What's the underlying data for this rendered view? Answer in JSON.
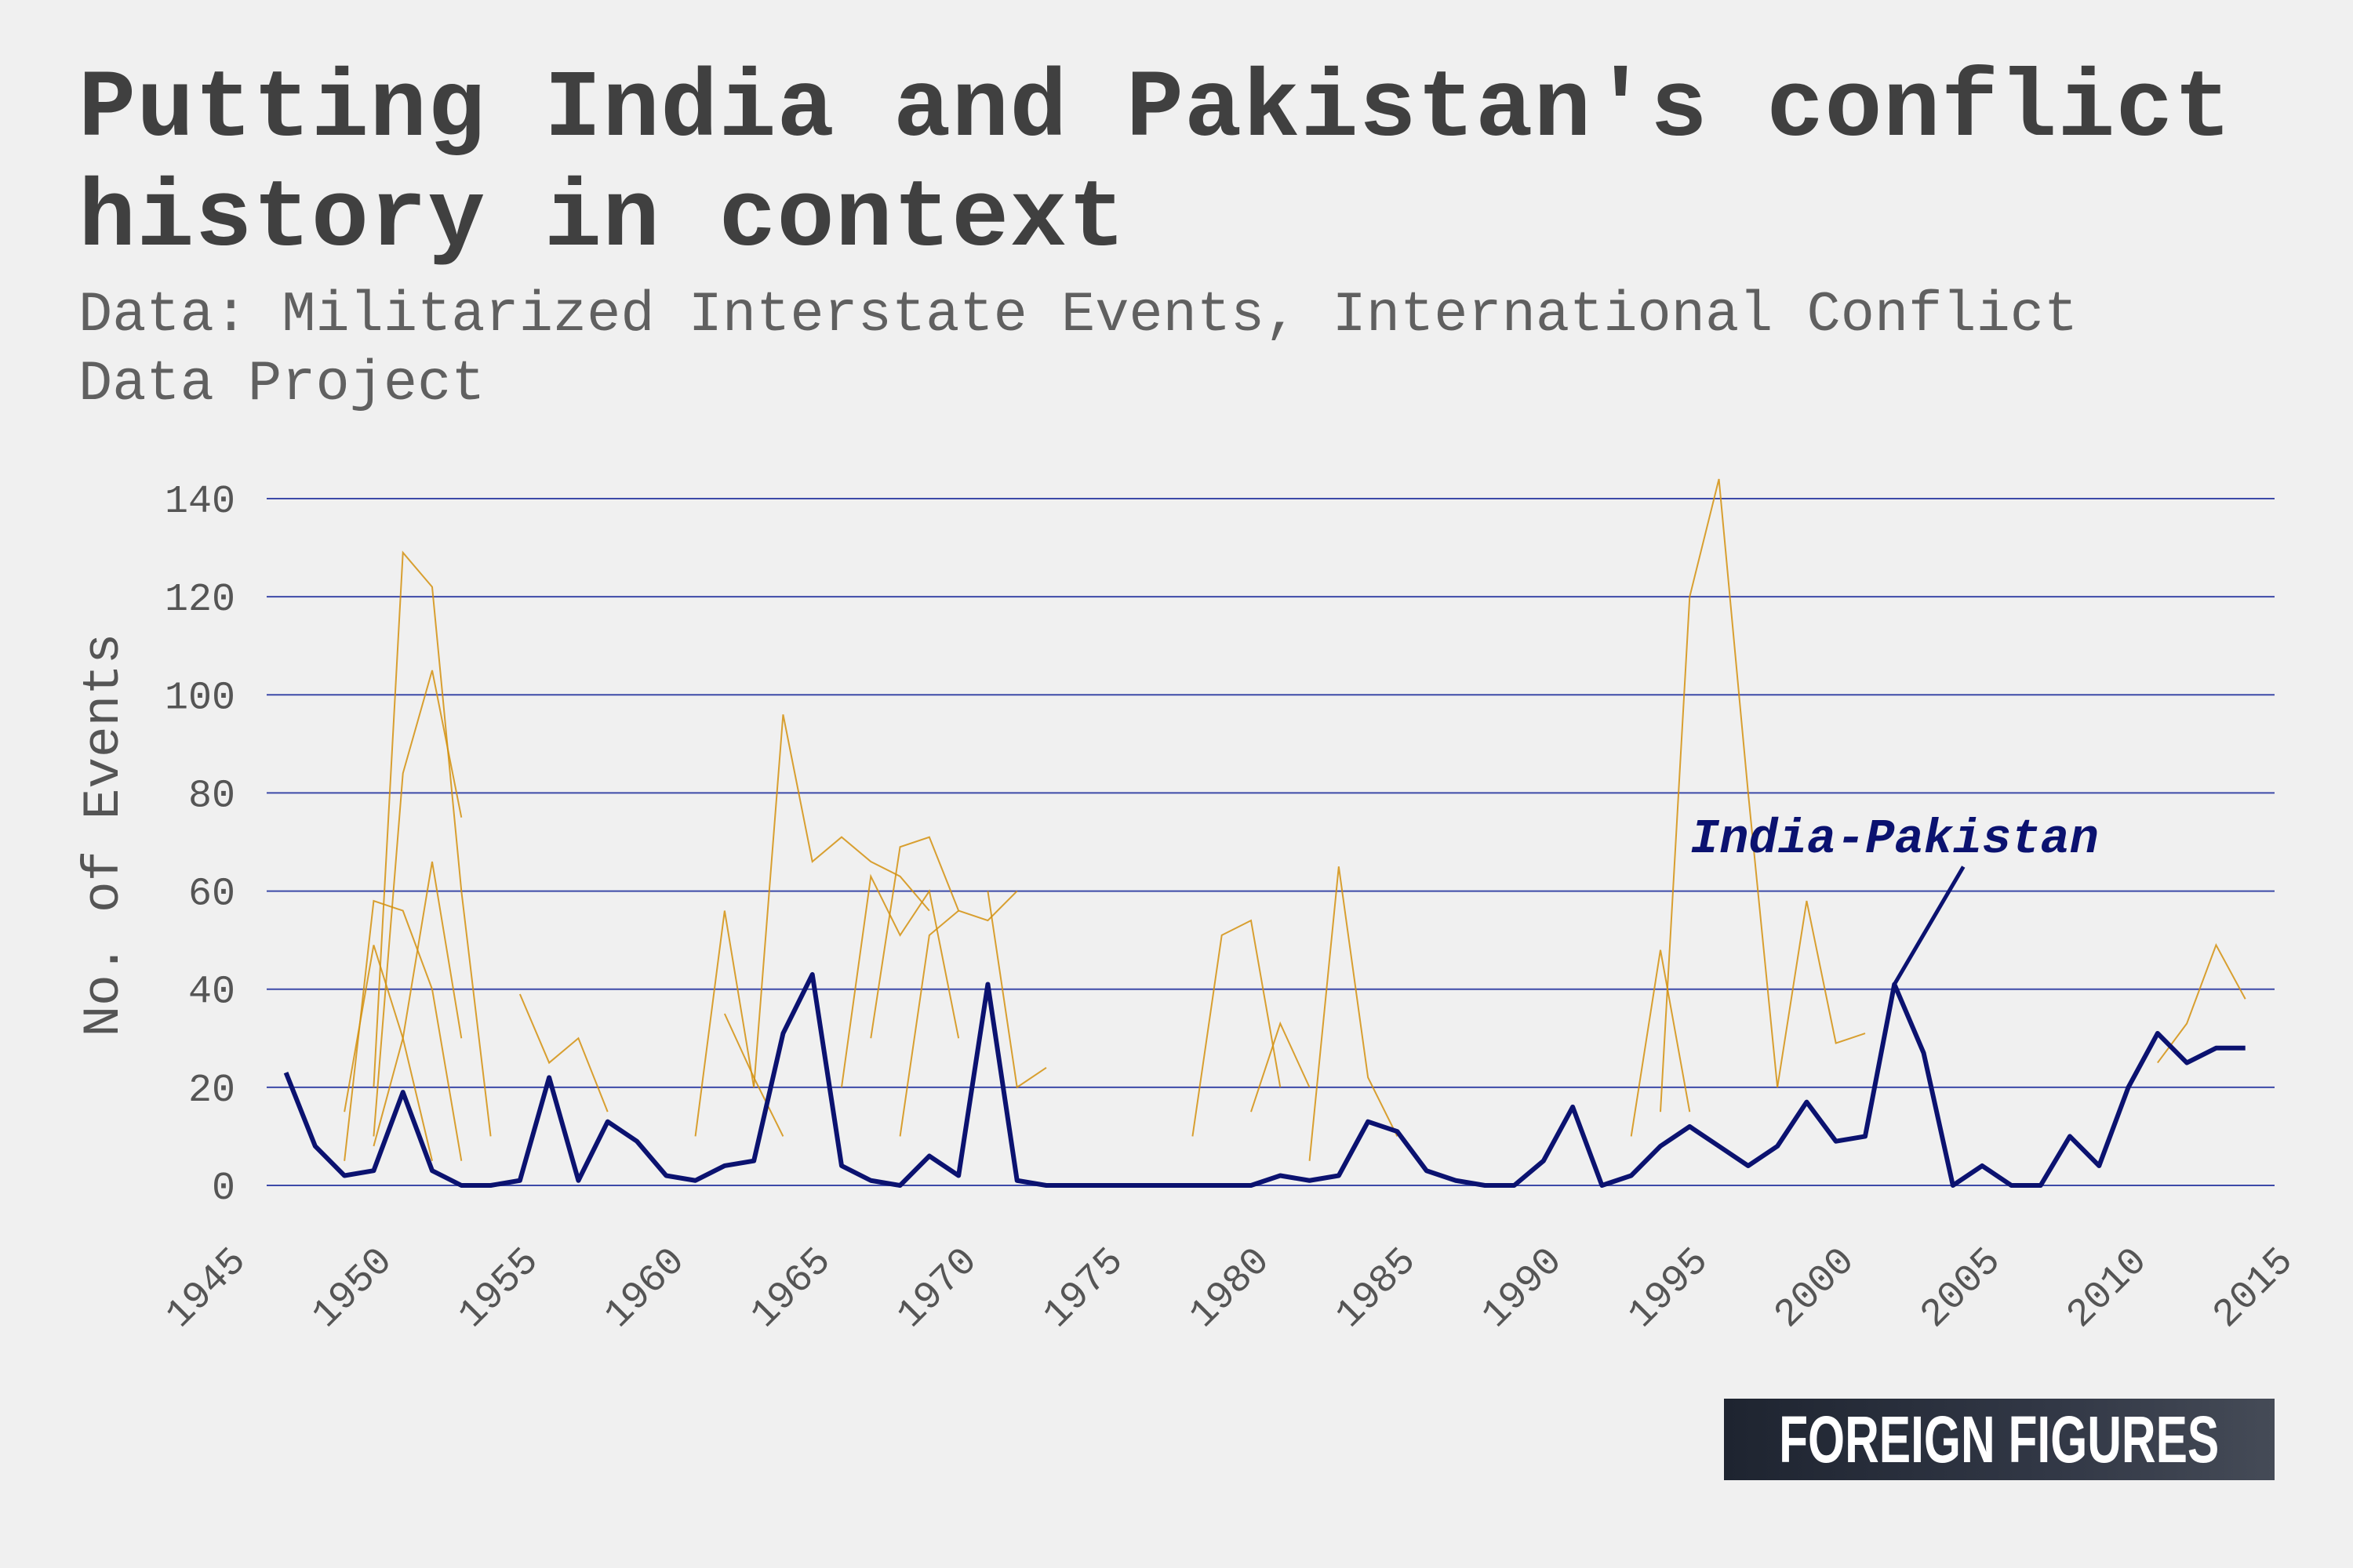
{
  "title": "Putting India and Pakistan's conflict history in context",
  "subtitle": "Data: Militarized Interstate Events, International Conflict Data Project",
  "brand": "FOREIGN FIGURES",
  "colors": {
    "background": "#f0f0f0",
    "highlight": "#0b1270",
    "background_series": "#d4900e",
    "grid": "#3d4aa8"
  },
  "chart_data": {
    "type": "line",
    "ylabel": "No. of Events",
    "xlabel": "",
    "xlim": [
      1945,
      2015
    ],
    "ylim": [
      0,
      140
    ],
    "yticks": [
      0,
      20,
      40,
      60,
      80,
      100,
      120,
      140
    ],
    "xticks": [
      "1945",
      "1950",
      "1955",
      "1960",
      "1965",
      "1970",
      "1975",
      "1980",
      "1985",
      "1990",
      "1995",
      "2000",
      "2005",
      "2010",
      "2015"
    ],
    "grid": "horizontal",
    "annotation": "India-Pakistan",
    "highlight_series": {
      "name": "India-Pakistan",
      "x": [
        1947,
        1948,
        1949,
        1950,
        1951,
        1952,
        1953,
        1954,
        1955,
        1956,
        1957,
        1958,
        1959,
        1960,
        1961,
        1962,
        1963,
        1964,
        1965,
        1966,
        1967,
        1968,
        1969,
        1970,
        1971,
        1972,
        1973,
        1974,
        1975,
        1976,
        1977,
        1978,
        1979,
        1980,
        1981,
        1982,
        1983,
        1984,
        1985,
        1986,
        1987,
        1988,
        1989,
        1990,
        1991,
        1992,
        1993,
        1994,
        1995,
        1996,
        1997,
        1998,
        1999,
        2000,
        2001,
        2002,
        2003,
        2004,
        2005,
        2006,
        2007,
        2008,
        2009,
        2010,
        2011,
        2012,
        2013,
        2014
      ],
      "values": [
        23,
        8,
        2,
        3,
        19,
        3,
        0,
        0,
        1,
        22,
        1,
        13,
        9,
        2,
        1,
        4,
        5,
        31,
        43,
        4,
        1,
        0,
        6,
        2,
        41,
        1,
        0,
        0,
        0,
        0,
        0,
        0,
        0,
        0,
        2,
        1,
        2,
        13,
        11,
        3,
        1,
        0,
        0,
        5,
        16,
        0,
        2,
        8,
        12,
        8,
        4,
        8,
        17,
        9,
        10,
        41,
        27,
        0,
        4,
        0,
        0,
        10,
        4,
        20,
        31,
        25,
        28,
        28
      ]
    },
    "background_series": [
      {
        "x": [
          1950,
          1951,
          1952,
          1953,
          1954
        ],
        "values": [
          20,
          129,
          122,
          60,
          10
        ]
      },
      {
        "x": [
          1950,
          1951,
          1952,
          1953
        ],
        "values": [
          10,
          84,
          105,
          75
        ]
      },
      {
        "x": [
          1949,
          1950,
          1951,
          1952,
          1953
        ],
        "values": [
          5,
          58,
          56,
          40,
          5
        ]
      },
      {
        "x": [
          1950,
          1951,
          1952,
          1953
        ],
        "values": [
          8,
          30,
          66,
          30
        ]
      },
      {
        "x": [
          1949,
          1950,
          1951,
          1952
        ],
        "values": [
          15,
          49,
          30,
          5
        ]
      },
      {
        "x": [
          1963,
          1964,
          1965,
          1966,
          1967,
          1968,
          1969
        ],
        "values": [
          20,
          96,
          66,
          71,
          66,
          63,
          56
        ]
      },
      {
        "x": [
          1967,
          1968,
          1969,
          1970,
          1971,
          1972
        ],
        "values": [
          30,
          69,
          71,
          56,
          54,
          60
        ]
      },
      {
        "x": [
          1966,
          1967,
          1968,
          1969,
          1970
        ],
        "values": [
          20,
          63,
          51,
          60,
          30
        ]
      },
      {
        "x": [
          1968,
          1969,
          1970
        ],
        "values": [
          10,
          51,
          56
        ]
      },
      {
        "x": [
          1971,
          1972,
          1973
        ],
        "values": [
          60,
          20,
          24
        ]
      },
      {
        "x": [
          1961,
          1962,
          1963
        ],
        "values": [
          10,
          56,
          20
        ]
      },
      {
        "x": [
          1962,
          1963,
          1964
        ],
        "values": [
          35,
          22,
          10
        ]
      },
      {
        "x": [
          1994,
          1995,
          1996,
          1997,
          1998
        ],
        "values": [
          15,
          120,
          144,
          80,
          20
        ]
      },
      {
        "x": [
          1993,
          1994,
          1995
        ],
        "values": [
          10,
          48,
          15
        ]
      },
      {
        "x": [
          1998,
          1999,
          2000,
          2001
        ],
        "values": [
          20,
          58,
          29,
          31
        ]
      },
      {
        "x": [
          1982,
          1983,
          1984,
          1985
        ],
        "values": [
          5,
          65,
          22,
          10
        ]
      },
      {
        "x": [
          1978,
          1979,
          1980,
          1981
        ],
        "values": [
          10,
          51,
          54,
          20
        ]
      },
      {
        "x": [
          1980,
          1981,
          1982
        ],
        "values": [
          15,
          33,
          20
        ]
      },
      {
        "x": [
          2011,
          2012,
          2013,
          2014
        ],
        "values": [
          25,
          33,
          49,
          38
        ]
      },
      {
        "x": [
          1955,
          1956,
          1957,
          1958
        ],
        "values": [
          39,
          25,
          30,
          15
        ]
      }
    ]
  }
}
